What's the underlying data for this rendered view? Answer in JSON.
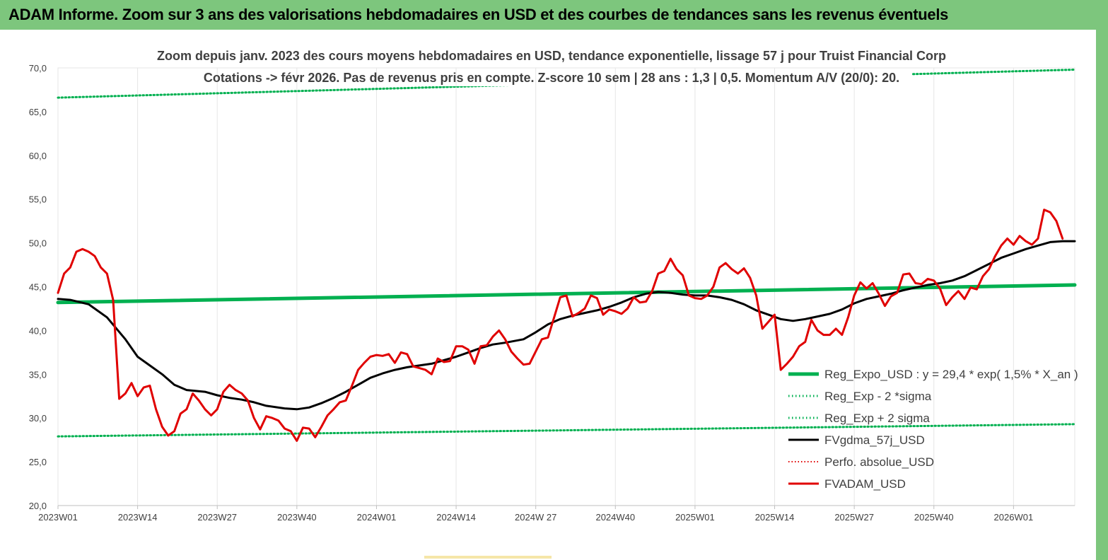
{
  "banner": {
    "title": "ADAM Informe. Zoom sur 3 ans des valorisations hebdomadaires en USD et des courbes de tendances sans les revenus éventuels"
  },
  "colors": {
    "banner_bg": "#7dc67d",
    "trend": "#00b050",
    "fvgdma": "#000000",
    "fvadam": "#e00000",
    "perfo": "#e00000"
  },
  "chart_data": {
    "type": "line",
    "subtitle_line1": "Zoom depuis janv. 2023 des cours moyens hebdomadaires en USD, tendance exponentielle, lissage 57 j pour Truist Financial Corp",
    "subtitle_line2": "Cotations -> févr 2026.  Pas de revenus pris en compte. Z-score 10 sem  | 28 ans : 1,3  | 0,5. Momentum A/V (20/0): 20.",
    "ylim": [
      20,
      70
    ],
    "y_ticks": [
      "20,0",
      "25,0",
      "30,0",
      "35,0",
      "40,0",
      "45,0",
      "50,0",
      "55,0",
      "60,0",
      "65,0",
      "70,0"
    ],
    "x_ticks": [
      "2023W01",
      "2023W14",
      "2023W27",
      "2023W40",
      "2024W01",
      "2024W14",
      "2024W 27",
      "2024W40",
      "2025W01",
      "2025W14",
      "2025W27",
      "2025W40",
      "2026W01"
    ],
    "x_tick_index": [
      0,
      13,
      26,
      39,
      52,
      65,
      78,
      91,
      104,
      117,
      130,
      143,
      156
    ],
    "grid": "vertical",
    "legend_position": "bottom-right",
    "series": [
      {
        "name": "Reg_Expo_USD : y = 29,4 * exp( 1,5% *  X_an )",
        "kind": "trend",
        "points": [
          [
            0,
            43.2
          ],
          [
            166,
            45.2
          ]
        ]
      },
      {
        "name": "Reg_Exp - 2 *sigma",
        "kind": "lower",
        "points": [
          [
            0,
            27.9
          ],
          [
            166,
            29.3
          ]
        ]
      },
      {
        "name": "Reg_Exp + 2 sigma",
        "kind": "upper",
        "points": [
          [
            0,
            66.6
          ],
          [
            166,
            69.8
          ]
        ]
      },
      {
        "name": "FVgdma_57j_USD",
        "kind": "fvgdma",
        "points": [
          [
            0,
            43.6
          ],
          [
            2,
            43.5
          ],
          [
            5,
            43.0
          ],
          [
            8,
            41.5
          ],
          [
            11,
            39.0
          ],
          [
            13,
            37.0
          ],
          [
            15,
            36.0
          ],
          [
            17,
            35.0
          ],
          [
            19,
            33.8
          ],
          [
            21,
            33.2
          ],
          [
            24,
            33.0
          ],
          [
            26,
            32.6
          ],
          [
            28,
            32.3
          ],
          [
            30,
            32.1
          ],
          [
            32,
            31.8
          ],
          [
            34,
            31.4
          ],
          [
            37,
            31.1
          ],
          [
            39,
            31.0
          ],
          [
            41,
            31.2
          ],
          [
            43,
            31.7
          ],
          [
            45,
            32.3
          ],
          [
            47,
            33.0
          ],
          [
            49,
            33.8
          ],
          [
            51,
            34.6
          ],
          [
            53,
            35.1
          ],
          [
            55,
            35.5
          ],
          [
            57,
            35.8
          ],
          [
            59,
            36.0
          ],
          [
            61,
            36.2
          ],
          [
            63,
            36.6
          ],
          [
            65,
            37.0
          ],
          [
            67,
            37.5
          ],
          [
            69,
            38.0
          ],
          [
            71,
            38.4
          ],
          [
            73,
            38.6
          ],
          [
            76,
            39.0
          ],
          [
            78,
            39.8
          ],
          [
            80,
            40.7
          ],
          [
            82,
            41.3
          ],
          [
            84,
            41.7
          ],
          [
            86,
            42.0
          ],
          [
            88,
            42.3
          ],
          [
            90,
            42.7
          ],
          [
            92,
            43.2
          ],
          [
            94,
            43.8
          ],
          [
            96,
            44.2
          ],
          [
            98,
            44.4
          ],
          [
            100,
            44.3
          ],
          [
            102,
            44.1
          ],
          [
            104,
            44.0
          ],
          [
            106,
            44.0
          ],
          [
            108,
            43.8
          ],
          [
            110,
            43.5
          ],
          [
            112,
            43.0
          ],
          [
            114,
            42.3
          ],
          [
            116,
            41.8
          ],
          [
            118,
            41.3
          ],
          [
            120,
            41.1
          ],
          [
            122,
            41.3
          ],
          [
            124,
            41.6
          ],
          [
            126,
            41.9
          ],
          [
            128,
            42.4
          ],
          [
            130,
            43.1
          ],
          [
            132,
            43.6
          ],
          [
            134,
            43.9
          ],
          [
            136,
            44.2
          ],
          [
            138,
            44.6
          ],
          [
            140,
            44.9
          ],
          [
            142,
            45.2
          ],
          [
            144,
            45.4
          ],
          [
            146,
            45.7
          ],
          [
            148,
            46.2
          ],
          [
            150,
            46.9
          ],
          [
            152,
            47.6
          ],
          [
            154,
            48.3
          ],
          [
            156,
            48.8
          ],
          [
            158,
            49.3
          ],
          [
            160,
            49.7
          ],
          [
            162,
            50.1
          ],
          [
            164,
            50.2
          ],
          [
            166,
            50.2
          ]
        ]
      },
      {
        "name": "Perfo. absolue_USD",
        "kind": "perfo",
        "points": []
      },
      {
        "name": "FVADAM_USD",
        "kind": "fvadam",
        "points": [
          [
            0,
            44.3
          ],
          [
            1,
            46.5
          ],
          [
            2,
            47.2
          ],
          [
            3,
            49.0
          ],
          [
            4,
            49.3
          ],
          [
            5,
            49.0
          ],
          [
            6,
            48.5
          ],
          [
            7,
            47.2
          ],
          [
            8,
            46.5
          ],
          [
            9,
            43.5
          ],
          [
            10,
            32.2
          ],
          [
            11,
            32.8
          ],
          [
            12,
            34.0
          ],
          [
            13,
            32.5
          ],
          [
            14,
            33.5
          ],
          [
            15,
            33.7
          ],
          [
            16,
            31.0
          ],
          [
            17,
            29.0
          ],
          [
            18,
            28.0
          ],
          [
            19,
            28.5
          ],
          [
            20,
            30.5
          ],
          [
            21,
            31.0
          ],
          [
            22,
            32.8
          ],
          [
            23,
            32.0
          ],
          [
            24,
            31.0
          ],
          [
            25,
            30.3
          ],
          [
            26,
            31.0
          ],
          [
            27,
            33.0
          ],
          [
            28,
            33.8
          ],
          [
            29,
            33.2
          ],
          [
            30,
            32.8
          ],
          [
            31,
            32.0
          ],
          [
            32,
            30.0
          ],
          [
            33,
            28.7
          ],
          [
            34,
            30.2
          ],
          [
            35,
            30.0
          ],
          [
            36,
            29.7
          ],
          [
            37,
            28.8
          ],
          [
            38,
            28.5
          ],
          [
            39,
            27.4
          ],
          [
            40,
            28.9
          ],
          [
            41,
            28.8
          ],
          [
            42,
            27.8
          ],
          [
            43,
            29.0
          ],
          [
            44,
            30.3
          ],
          [
            45,
            31.0
          ],
          [
            46,
            31.8
          ],
          [
            47,
            32.0
          ],
          [
            48,
            33.7
          ],
          [
            49,
            35.5
          ],
          [
            50,
            36.3
          ],
          [
            51,
            37.0
          ],
          [
            52,
            37.2
          ],
          [
            53,
            37.1
          ],
          [
            54,
            37.3
          ],
          [
            55,
            36.3
          ],
          [
            56,
            37.5
          ],
          [
            57,
            37.3
          ],
          [
            58,
            35.9
          ],
          [
            59,
            35.7
          ],
          [
            60,
            35.5
          ],
          [
            61,
            35.0
          ],
          [
            62,
            36.8
          ],
          [
            63,
            36.4
          ],
          [
            64,
            36.5
          ],
          [
            65,
            38.2
          ],
          [
            66,
            38.2
          ],
          [
            67,
            37.8
          ],
          [
            68,
            36.2
          ],
          [
            69,
            38.2
          ],
          [
            70,
            38.3
          ],
          [
            71,
            39.3
          ],
          [
            72,
            40.0
          ],
          [
            73,
            39.0
          ],
          [
            74,
            37.6
          ],
          [
            75,
            36.8
          ],
          [
            76,
            36.1
          ],
          [
            77,
            36.2
          ],
          [
            78,
            37.6
          ],
          [
            79,
            39.0
          ],
          [
            80,
            39.2
          ],
          [
            81,
            41.5
          ],
          [
            82,
            43.8
          ],
          [
            83,
            44.0
          ],
          [
            84,
            41.6
          ],
          [
            85,
            42.0
          ],
          [
            86,
            42.5
          ],
          [
            87,
            44.0
          ],
          [
            88,
            43.7
          ],
          [
            89,
            41.8
          ],
          [
            90,
            42.4
          ],
          [
            91,
            42.2
          ],
          [
            92,
            41.9
          ],
          [
            93,
            42.5
          ],
          [
            94,
            43.8
          ],
          [
            95,
            43.2
          ],
          [
            96,
            43.3
          ],
          [
            97,
            44.5
          ],
          [
            98,
            46.5
          ],
          [
            99,
            46.8
          ],
          [
            100,
            48.2
          ],
          [
            101,
            47.0
          ],
          [
            102,
            46.3
          ],
          [
            103,
            44.0
          ],
          [
            104,
            43.7
          ],
          [
            105,
            43.6
          ],
          [
            106,
            44.0
          ],
          [
            107,
            45.0
          ],
          [
            108,
            47.2
          ],
          [
            109,
            47.7
          ],
          [
            110,
            47.0
          ],
          [
            111,
            46.5
          ],
          [
            112,
            47.1
          ],
          [
            113,
            46.0
          ],
          [
            114,
            44.0
          ],
          [
            115,
            40.2
          ],
          [
            116,
            41.0
          ],
          [
            117,
            41.8
          ],
          [
            118,
            35.5
          ],
          [
            119,
            36.2
          ],
          [
            120,
            37.0
          ],
          [
            121,
            38.2
          ],
          [
            122,
            38.7
          ],
          [
            123,
            41.2
          ],
          [
            124,
            40.0
          ],
          [
            125,
            39.5
          ],
          [
            126,
            39.5
          ],
          [
            127,
            40.2
          ],
          [
            128,
            39.5
          ],
          [
            129,
            41.5
          ],
          [
            130,
            44.0
          ],
          [
            131,
            45.5
          ],
          [
            132,
            44.8
          ],
          [
            133,
            45.4
          ],
          [
            134,
            44.2
          ],
          [
            135,
            42.8
          ],
          [
            136,
            43.9
          ],
          [
            137,
            44.3
          ],
          [
            138,
            46.4
          ],
          [
            139,
            46.5
          ],
          [
            140,
            45.4
          ],
          [
            141,
            45.3
          ],
          [
            142,
            45.9
          ],
          [
            143,
            45.7
          ],
          [
            144,
            44.8
          ],
          [
            145,
            42.9
          ],
          [
            146,
            43.8
          ],
          [
            147,
            44.5
          ],
          [
            148,
            43.6
          ],
          [
            149,
            44.9
          ],
          [
            150,
            44.7
          ],
          [
            151,
            46.2
          ],
          [
            152,
            47.0
          ],
          [
            153,
            48.5
          ],
          [
            154,
            49.7
          ],
          [
            155,
            50.5
          ],
          [
            156,
            49.8
          ],
          [
            157,
            50.8
          ],
          [
            158,
            50.2
          ],
          [
            159,
            49.8
          ],
          [
            160,
            50.5
          ],
          [
            161,
            53.8
          ],
          [
            162,
            53.5
          ],
          [
            163,
            52.5
          ],
          [
            164,
            50.5
          ]
        ]
      }
    ]
  }
}
